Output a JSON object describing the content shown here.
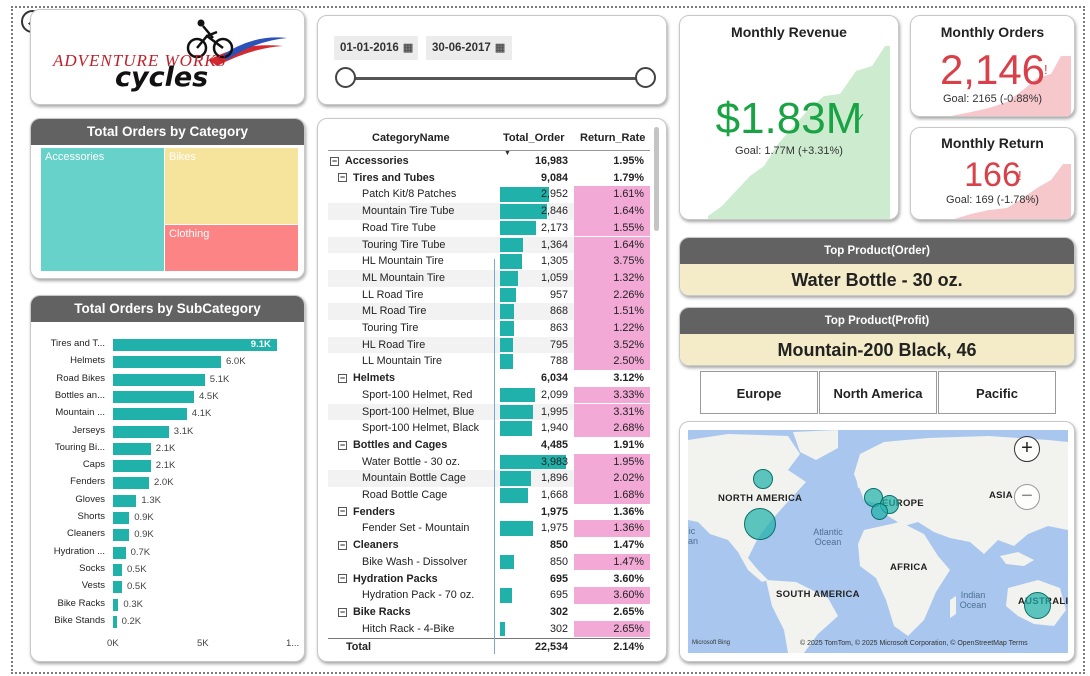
{
  "back": {
    "glyph": "←"
  },
  "logo": {
    "line1": "ADVENTURE WORKS",
    "line2": "cycles"
  },
  "date_slicer": {
    "start": "01-01-2016",
    "end": "30-06-2017"
  },
  "treemap": {
    "title": "Total Orders by Category",
    "tiles": [
      {
        "label": "Accessories",
        "color": "#66d2c9"
      },
      {
        "label": "Bikes",
        "color": "#f6e49c"
      },
      {
        "label": "Clothing",
        "color": "#fc8484"
      }
    ]
  },
  "subcategory": {
    "title": "Total Orders by SubCategory",
    "items": [
      {
        "label": "Tires and T...",
        "value": 9.1,
        "text": "9.1K"
      },
      {
        "label": "Helmets",
        "value": 6.0,
        "text": "6.0K"
      },
      {
        "label": "Road Bikes",
        "value": 5.1,
        "text": "5.1K"
      },
      {
        "label": "Bottles an...",
        "value": 4.5,
        "text": "4.5K"
      },
      {
        "label": "Mountain ...",
        "value": 4.1,
        "text": "4.1K"
      },
      {
        "label": "Jerseys",
        "value": 3.1,
        "text": "3.1K"
      },
      {
        "label": "Touring Bi...",
        "value": 2.1,
        "text": "2.1K"
      },
      {
        "label": "Caps",
        "value": 2.1,
        "text": "2.1K"
      },
      {
        "label": "Fenders",
        "value": 2.0,
        "text": "2.0K"
      },
      {
        "label": "Gloves",
        "value": 1.3,
        "text": "1.3K"
      },
      {
        "label": "Shorts",
        "value": 0.9,
        "text": "0.9K"
      },
      {
        "label": "Cleaners",
        "value": 0.9,
        "text": "0.9K"
      },
      {
        "label": "Hydration ...",
        "value": 0.7,
        "text": "0.7K"
      },
      {
        "label": "Socks",
        "value": 0.5,
        "text": "0.5K"
      },
      {
        "label": "Vests",
        "value": 0.5,
        "text": "0.5K"
      },
      {
        "label": "Bike Racks",
        "value": 0.3,
        "text": "0.3K"
      },
      {
        "label": "Bike Stands",
        "value": 0.2,
        "text": "0.2K"
      }
    ],
    "axis_ticks": [
      "0K",
      "5K",
      "1..."
    ],
    "max": 10
  },
  "table": {
    "headers": {
      "name": "CategoryName",
      "orders": "Total_Order",
      "ret": "Return_Rate"
    },
    "rows": [
      {
        "level": "cat",
        "name": "Accessories",
        "orders": "16,983",
        "ret": "1.95%"
      },
      {
        "level": "grp",
        "name": "Tires and Tubes",
        "orders": "9,084",
        "ret": "1.79%"
      },
      {
        "level": "item",
        "name": "Patch Kit/8 Patches",
        "orders": "2,952",
        "v": 2952,
        "ret": "1.61%"
      },
      {
        "level": "item",
        "name": "Mountain Tire Tube",
        "orders": "2,846",
        "v": 2846,
        "ret": "1.64%"
      },
      {
        "level": "item",
        "name": "Road Tire Tube",
        "orders": "2,173",
        "v": 2173,
        "ret": "1.55%"
      },
      {
        "level": "item",
        "name": "Touring Tire Tube",
        "orders": "1,364",
        "v": 1364,
        "ret": "1.64%"
      },
      {
        "level": "item",
        "name": "HL Mountain Tire",
        "orders": "1,305",
        "v": 1305,
        "ret": "3.75%"
      },
      {
        "level": "item",
        "name": "ML Mountain Tire",
        "orders": "1,059",
        "v": 1059,
        "ret": "1.32%"
      },
      {
        "level": "item",
        "name": "LL Road Tire",
        "orders": "957",
        "v": 957,
        "ret": "2.26%"
      },
      {
        "level": "item",
        "name": "ML Road Tire",
        "orders": "868",
        "v": 868,
        "ret": "1.51%"
      },
      {
        "level": "item",
        "name": "Touring Tire",
        "orders": "863",
        "v": 863,
        "ret": "1.22%"
      },
      {
        "level": "item",
        "name": "HL Road Tire",
        "orders": "795",
        "v": 795,
        "ret": "3.52%"
      },
      {
        "level": "item",
        "name": "LL Mountain Tire",
        "orders": "788",
        "v": 788,
        "ret": "2.50%"
      },
      {
        "level": "grp",
        "name": "Helmets",
        "orders": "6,034",
        "ret": "3.12%"
      },
      {
        "level": "item",
        "name": "Sport-100 Helmet, Red",
        "orders": "2,099",
        "v": 2099,
        "ret": "3.33%"
      },
      {
        "level": "item",
        "name": "Sport-100 Helmet, Blue",
        "orders": "1,995",
        "v": 1995,
        "ret": "3.31%"
      },
      {
        "level": "item",
        "name": "Sport-100 Helmet, Black",
        "orders": "1,940",
        "v": 1940,
        "ret": "2.68%"
      },
      {
        "level": "grp",
        "name": "Bottles and Cages",
        "orders": "4,485",
        "ret": "1.91%"
      },
      {
        "level": "item",
        "name": "Water Bottle - 30 oz.",
        "orders": "3,983",
        "v": 3983,
        "ret": "1.95%"
      },
      {
        "level": "item",
        "name": "Mountain Bottle Cage",
        "orders": "1,896",
        "v": 1896,
        "ret": "2.02%"
      },
      {
        "level": "item",
        "name": "Road Bottle Cage",
        "orders": "1,668",
        "v": 1668,
        "ret": "1.68%"
      },
      {
        "level": "grp",
        "name": "Fenders",
        "orders": "1,975",
        "ret": "1.36%"
      },
      {
        "level": "item",
        "name": "Fender Set - Mountain",
        "orders": "1,975",
        "v": 1975,
        "ret": "1.36%"
      },
      {
        "level": "grp",
        "name": "Cleaners",
        "orders": "850",
        "ret": "1.47%"
      },
      {
        "level": "item",
        "name": "Bike Wash - Dissolver",
        "orders": "850",
        "v": 850,
        "ret": "1.47%"
      },
      {
        "level": "grp",
        "name": "Hydration Packs",
        "orders": "695",
        "ret": "3.60%"
      },
      {
        "level": "item",
        "name": "Hydration Pack - 70 oz.",
        "orders": "695",
        "v": 695,
        "ret": "3.60%"
      },
      {
        "level": "grp",
        "name": "Bike Racks",
        "orders": "302",
        "ret": "2.65%"
      },
      {
        "level": "item",
        "name": "Hitch Rack - 4-Bike",
        "orders": "302",
        "v": 302,
        "ret": "2.65%"
      }
    ],
    "total": {
      "label": "Total",
      "orders": "22,534",
      "ret": "2.14%"
    },
    "bar_max": 3983
  },
  "kpi": {
    "revenue": {
      "title": "Monthly Revenue",
      "value": "$1.83M",
      "goal": "Goal: 1.77M (+3.31%)",
      "color": "#1aa344"
    },
    "orders": {
      "title": "Monthly Orders",
      "value": "2,146",
      "mark": "!",
      "goal": "Goal: 2165 (-0.88%)",
      "color": "#d8404a"
    },
    "returns": {
      "title": "Monthly Return",
      "value": "166",
      "mark": "!",
      "goal": "Goal: 169 (-1.78%)",
      "color": "#d8404a"
    }
  },
  "top_order": {
    "title": "Top Product(Order)",
    "value": "Water Bottle - 30 oz."
  },
  "top_profit": {
    "title": "Top Product(Profit)",
    "value": "Mountain-200 Black, 46"
  },
  "regions": [
    "Europe",
    "North America",
    "Pacific"
  ],
  "map": {
    "labels": {
      "na": "NORTH AMERICA",
      "eu": "EUROPE",
      "asia": "ASIA",
      "africa": "AFRICA",
      "sa": "SOUTH AMERICA",
      "au": "AUSTRALIA"
    },
    "oceans": {
      "atlantic": "Atlantic Ocean",
      "indian": "Indian Ocean",
      "pacific_partial": "ic an"
    },
    "attribution": "© 2025 TomTom, © 2025 Microsoft Corporation, © OpenStreetMap  Terms",
    "bing": "Microsoft Bing",
    "zoom_in": "+",
    "zoom_out": "−"
  }
}
